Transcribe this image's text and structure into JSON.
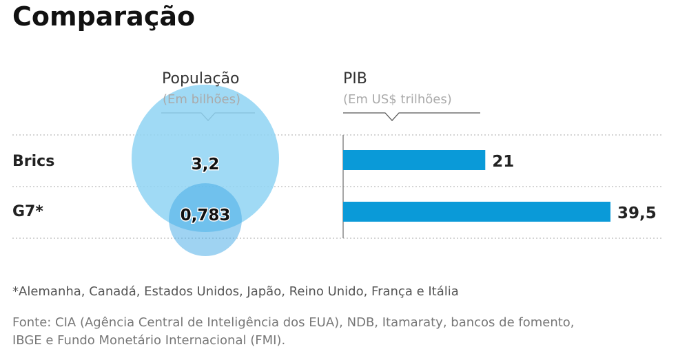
{
  "title": "Comparação",
  "chart_data": [
    {
      "type": "bubble",
      "title": "População",
      "subtitle": "(Em bilhões)",
      "categories": [
        "Brics",
        "G7*"
      ],
      "values": [
        3.2,
        0.783
      ],
      "labels": [
        "3,2",
        "0,783"
      ],
      "color": "#8fd3f3"
    },
    {
      "type": "bar",
      "title": "PIB",
      "subtitle": "(Em US$ trilhões)",
      "categories": [
        "Brics",
        "G7*"
      ],
      "values": [
        21,
        39.5
      ],
      "labels": [
        "21",
        "39,5"
      ],
      "color": "#0a9ad8"
    }
  ],
  "footnote": "*Alemanha, Canadá, Estados Unidos, Japão, Reino Unido, França e Itália",
  "source_line1": "Fonte: CIA (Agência Central de Inteligência dos EUA), NDB, Itamaraty, bancos de fomento,",
  "source_line2": "IBGE e Fundo Monetário Internacional (FMI)."
}
